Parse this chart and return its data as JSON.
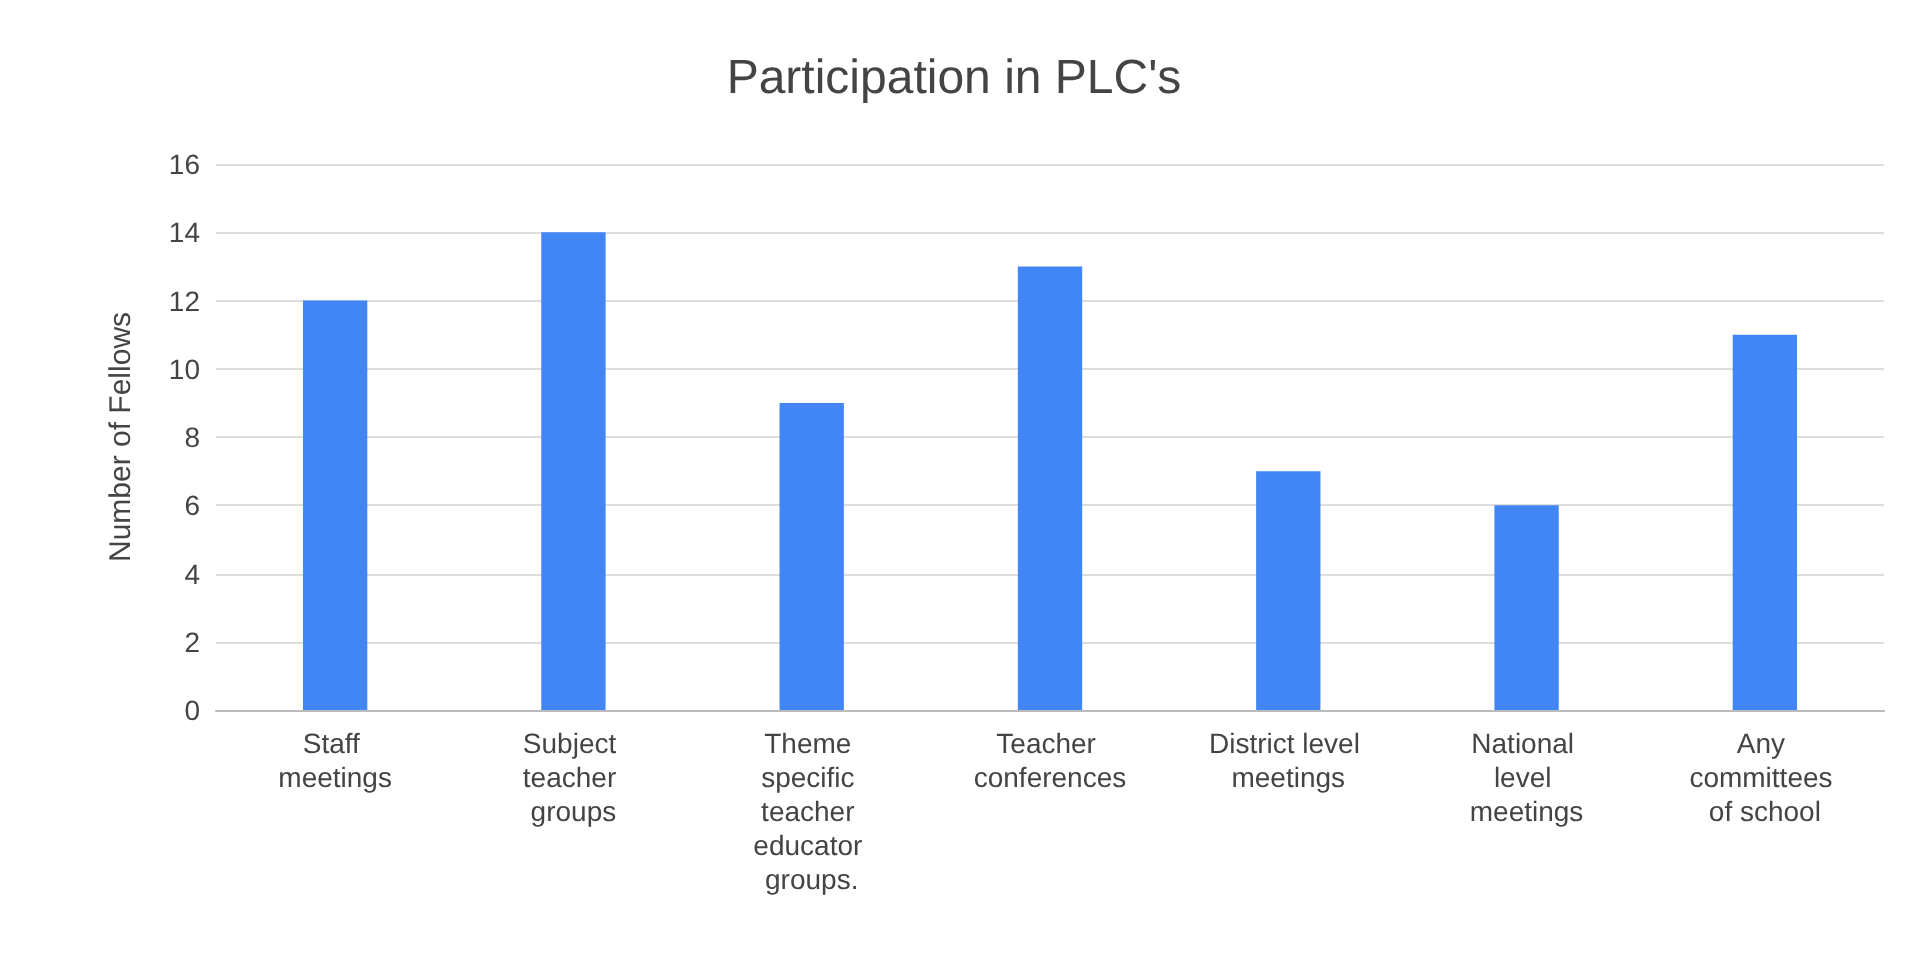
{
  "chart_data": {
    "type": "bar",
    "title": "Participation in PLC's",
    "ylabel": "Number of Fellows",
    "categories": [
      "Staff meetings",
      "Subject teacher groups",
      "Theme specific teacher educator groups.",
      "Teacher conferences",
      "District level meetings",
      "National level meetings",
      "Any committees of school"
    ],
    "values": [
      12,
      14,
      9,
      13,
      7,
      6,
      11
    ],
    "color": "#4285f4",
    "ylim": [
      0,
      16
    ],
    "yticks": [
      0,
      2,
      4,
      6,
      8,
      10,
      12,
      14,
      16
    ],
    "grid": "y"
  }
}
